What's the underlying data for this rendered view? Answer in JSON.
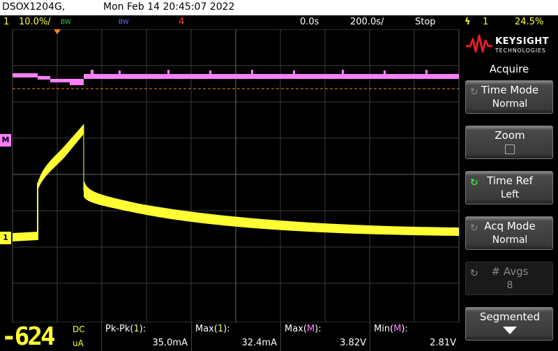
{
  "titlebar": {
    "model": "DSOX1204G,",
    "datetime": "Mon Feb 14 20:45:07 2022"
  },
  "status": {
    "ch1_num": "1",
    "ch1_scale": "10.0%/",
    "ch1_bw": "BW",
    "ch2_bw": "BW",
    "ch4_num": "4",
    "delay": "0.0s",
    "timebase": "200.0s/",
    "run_state": "Stop",
    "trig_icon": "trigger-edge-icon",
    "trig_num": "1",
    "trig_level": "24.5%"
  },
  "markers": {
    "math_label": "M",
    "ch1_label": "1"
  },
  "panel": {
    "brand": "KEYSIGHT",
    "brand_sub": "TECHNOLOGIES",
    "title": "Acquire",
    "softkeys": [
      {
        "label": "Time Mode",
        "value": "Normal"
      },
      {
        "label": "Zoom",
        "value": ""
      },
      {
        "label": "Time Ref",
        "value": "Left"
      },
      {
        "label": "Acq Mode",
        "value": "Normal"
      },
      {
        "label": "# Avgs",
        "value": "8"
      },
      {
        "label": "Segmented",
        "value": ""
      }
    ]
  },
  "readout": {
    "value": "-624",
    "coupling": "DC",
    "unit": "uA"
  },
  "measurements": [
    {
      "label": "Pk-Pk(",
      "src": "1",
      "close": "):",
      "value": "35.0mA"
    },
    {
      "label": "Max(",
      "src": "1",
      "close": "):",
      "value": "32.4mA"
    },
    {
      "label": "Max(",
      "src": "M",
      "close": "):",
      "value": "3.82V"
    },
    {
      "label": "Min(",
      "src": "M",
      "close": "):",
      "value": "2.81V"
    }
  ],
  "colors": {
    "ch1": "#ffff33",
    "math": "#ff80ff",
    "grid": "#444444",
    "trigger_line": "#ff8c00"
  }
}
